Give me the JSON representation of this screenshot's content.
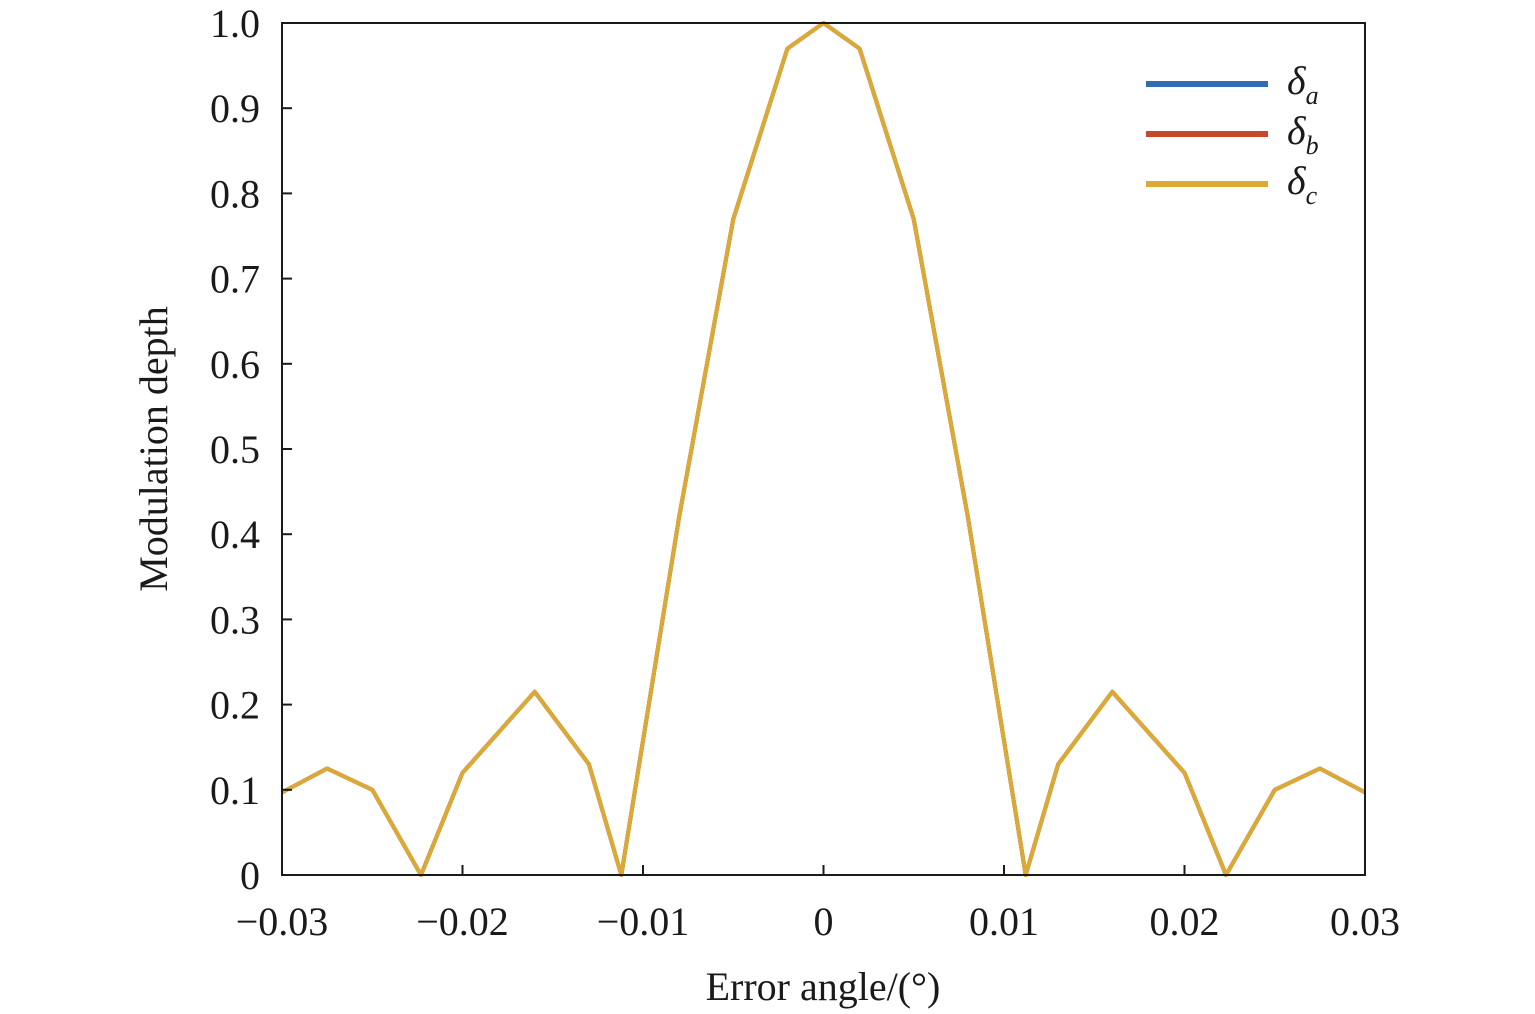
{
  "chart_data": {
    "type": "line",
    "xlabel": "Error angle/(°)",
    "ylabel": "Modulation depth",
    "xlim": [
      -0.03,
      0.03
    ],
    "ylim": [
      0,
      1.0
    ],
    "x_ticks": [
      "−0.03",
      "−0.02",
      "−0.01",
      "0",
      "0.01",
      "0.02",
      "0.03"
    ],
    "x_tick_values": [
      -0.03,
      -0.02,
      -0.01,
      0,
      0.01,
      0.02,
      0.03
    ],
    "y_ticks": [
      "0",
      "0.1",
      "0.2",
      "0.3",
      "0.4",
      "0.5",
      "0.6",
      "0.7",
      "0.8",
      "0.9",
      "1.0"
    ],
    "y_tick_values": [
      0,
      0.1,
      0.2,
      0.3,
      0.4,
      0.5,
      0.6,
      0.7,
      0.8,
      0.9,
      1.0
    ],
    "grid": false,
    "legend_position": "top-right",
    "series": [
      {
        "name": "δa",
        "symbol": "δ",
        "subscript": "a",
        "color": "#2f6db5",
        "x": [
          -0.03,
          -0.0275,
          -0.025,
          -0.0223,
          -0.02,
          -0.016,
          -0.013,
          -0.0112,
          -0.008,
          -0.005,
          -0.002,
          0,
          0.002,
          0.005,
          0.008,
          0.0112,
          0.013,
          0.016,
          0.02,
          0.0223,
          0.025,
          0.0275,
          0.03
        ],
        "y": [
          0.097,
          0.125,
          0.1,
          0.0,
          0.12,
          0.215,
          0.13,
          0.0,
          0.42,
          0.77,
          0.97,
          1.0,
          0.97,
          0.77,
          0.42,
          0.0,
          0.13,
          0.215,
          0.12,
          0.0,
          0.1,
          0.125,
          0.097
        ]
      },
      {
        "name": "δb",
        "symbol": "δ",
        "subscript": "b",
        "color": "#c9472f",
        "x": [
          -0.03,
          -0.0275,
          -0.025,
          -0.0223,
          -0.02,
          -0.016,
          -0.013,
          -0.0112,
          -0.008,
          -0.005,
          -0.002,
          0,
          0.002,
          0.005,
          0.008,
          0.0112,
          0.013,
          0.016,
          0.02,
          0.0223,
          0.025,
          0.0275,
          0.03
        ],
        "y": [
          0.097,
          0.125,
          0.1,
          0.0,
          0.12,
          0.215,
          0.13,
          0.0,
          0.42,
          0.77,
          0.97,
          1.0,
          0.97,
          0.77,
          0.42,
          0.0,
          0.13,
          0.215,
          0.12,
          0.0,
          0.1,
          0.125,
          0.097
        ]
      },
      {
        "name": "δc",
        "symbol": "δ",
        "subscript": "c",
        "color": "#dca935",
        "x": [
          -0.03,
          -0.0275,
          -0.025,
          -0.0223,
          -0.02,
          -0.016,
          -0.013,
          -0.0112,
          -0.008,
          -0.005,
          -0.002,
          0,
          0.002,
          0.005,
          0.008,
          0.0112,
          0.013,
          0.016,
          0.02,
          0.0223,
          0.025,
          0.0275,
          0.03
        ],
        "y": [
          0.097,
          0.125,
          0.1,
          0.0,
          0.12,
          0.215,
          0.13,
          0.0,
          0.42,
          0.77,
          0.97,
          1.0,
          0.97,
          0.77,
          0.42,
          0.0,
          0.13,
          0.215,
          0.12,
          0.0,
          0.1,
          0.125,
          0.097
        ]
      }
    ]
  }
}
